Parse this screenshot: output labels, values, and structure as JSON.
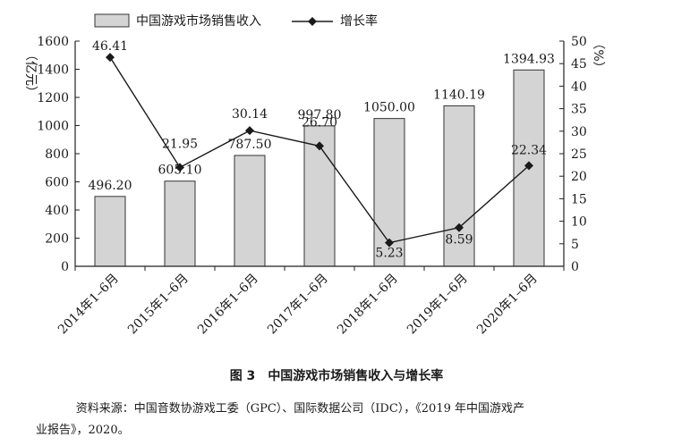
{
  "chart_data": {
    "type": "bar",
    "title": "中国游戏市场销售收入与增长率",
    "figure_number": "图 3",
    "categories": [
      "2014年1–6月",
      "2015年1–6月",
      "2016年1–6月",
      "2017年1–6月",
      "2018年1–6月",
      "2019年1–6月",
      "2020年1–6月"
    ],
    "series": [
      {
        "name": "中国游戏市场销售收入",
        "type": "bar",
        "axis": "left",
        "values": [
          496.2,
          605.1,
          787.5,
          997.8,
          1050.0,
          1140.19,
          1394.93
        ],
        "labels": [
          "496.20",
          "605.10",
          "787.50",
          "997.80",
          "1050.00",
          "1140.19",
          "1394.93"
        ],
        "color": "#d4d4d4"
      },
      {
        "name": "增长率",
        "type": "line",
        "axis": "right",
        "values": [
          46.41,
          21.95,
          30.14,
          26.7,
          5.23,
          8.59,
          22.34
        ],
        "labels": [
          "46.41",
          "21.95",
          "30.14",
          "26.70",
          "5.23",
          "8.59",
          "22.34"
        ],
        "color": "#1a1a1a"
      }
    ],
    "ylabel": "亿元",
    "y2label": "%",
    "ylim": [
      0,
      1600
    ],
    "y2lim": [
      0,
      50
    ],
    "yticks": [
      "0",
      "200",
      "400",
      "600",
      "800",
      "1000",
      "1200",
      "1400",
      "1600"
    ],
    "y2ticks": [
      "0",
      "5",
      "10",
      "15",
      "20",
      "25",
      "30",
      "35",
      "40",
      "45",
      "50"
    ],
    "legend_position": "top-left",
    "grid": false
  },
  "caption": {
    "number": "图 3",
    "text": "中国游戏市场销售收入与增长率"
  },
  "source": {
    "line1": "资料来源：中国音数协游戏工委（GPC）、国际数据公司（IDC），《2019 年中国游戏产",
    "line2": "业报告》，2020。"
  }
}
